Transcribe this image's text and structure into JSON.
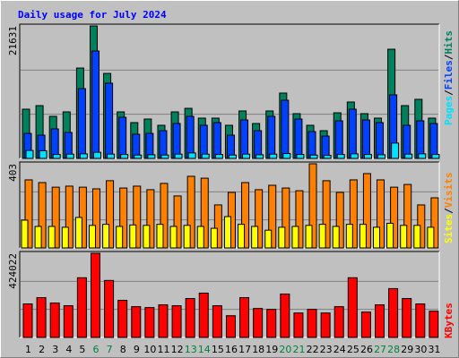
{
  "chart_data": [
    {
      "type": "bar",
      "title": "Daily usage for July 2024",
      "categories": [
        "1",
        "2",
        "3",
        "4",
        "5",
        "6",
        "7",
        "8",
        "9",
        "10",
        "11",
        "12",
        "13",
        "14",
        "15",
        "16",
        "17",
        "18",
        "19",
        "20",
        "21",
        "22",
        "23",
        "24",
        "25",
        "26",
        "27",
        "28",
        "29",
        "30",
        "31"
      ],
      "category_colors": [
        "#000000",
        "#000000",
        "#000000",
        "#000000",
        "#000000",
        "#008040",
        "#008040",
        "#000000",
        "#000000",
        "#000000",
        "#000000",
        "#000000",
        "#008040",
        "#008040",
        "#000000",
        "#000000",
        "#000000",
        "#000000",
        "#000000",
        "#008040",
        "#008040",
        "#000000",
        "#000000",
        "#000000",
        "#000000",
        "#000000",
        "#008040",
        "#008040",
        "#000000",
        "#000000",
        "#000000"
      ],
      "ylim": [
        0,
        21631
      ],
      "yticks": [
        21631
      ],
      "grid": true,
      "series": [
        {
          "name": "Hits",
          "color": "#00805c",
          "values": [
            8040,
            8620,
            6870,
            7600,
            14760,
            21631,
            13880,
            7600,
            5850,
            6430,
            5410,
            7600,
            8180,
            6580,
            6580,
            5410,
            7750,
            5700,
            7750,
            10670,
            7310,
            5410,
            4530,
            7450,
            9210,
            7310,
            6580,
            17830,
            8620,
            9650,
            6580
          ]
        },
        {
          "name": "Files",
          "color": "#0040ff",
          "values": [
            4090,
            3800,
            4820,
            4240,
            11400,
            17540,
            12280,
            6720,
            3950,
            4090,
            4530,
            5700,
            6870,
            5410,
            5850,
            3800,
            6280,
            4530,
            6870,
            9500,
            6430,
            4380,
            3650,
            6140,
            8040,
            6280,
            5850,
            10380,
            5410,
            6140,
            5700
          ]
        },
        {
          "name": "Pages",
          "color": "#00e0ff",
          "values": [
            1300,
            1250,
            650,
            700,
            750,
            1000,
            700,
            650,
            550,
            600,
            550,
            700,
            900,
            700,
            650,
            550,
            700,
            600,
            700,
            800,
            650,
            550,
            500,
            650,
            750,
            650,
            600,
            2500,
            700,
            750,
            650
          ]
        }
      ]
    },
    {
      "type": "bar",
      "ylim": [
        0,
        403
      ],
      "yticks": [
        403
      ],
      "grid": true,
      "series": [
        {
          "name": "Visits",
          "color": "#ff8000",
          "values": [
            326,
            313,
            291,
            296,
            291,
            283,
            322,
            287,
            296,
            279,
            309,
            249,
            343,
            334,
            206,
            266,
            313,
            279,
            300,
            287,
            274,
            403,
            322,
            266,
            326,
            356,
            326,
            291,
            304,
            206,
            240
          ]
        },
        {
          "name": "Sites",
          "color": "#ffff00",
          "values": [
            133,
            103,
            103,
            99,
            146,
            108,
            113,
            103,
            110,
            108,
            113,
            103,
            108,
            103,
            94,
            150,
            113,
            103,
            85,
            99,
            103,
            108,
            113,
            103,
            113,
            113,
            99,
            118,
            108,
            108,
            99
          ]
        }
      ]
    },
    {
      "type": "bar",
      "ylim": [
        0,
        424022
      ],
      "yticks": [
        424022
      ],
      "grid": true,
      "series": [
        {
          "name": "KBytes",
          "color": "#ff0000",
          "values": [
            168700,
            200600,
            173250,
            159600,
            300900,
            424022,
            287200,
            186900,
            155000,
            150450,
            164100,
            159600,
            196000,
            223400,
            159600,
            109400,
            200600,
            145900,
            141300,
            218800,
            123100,
            141300,
            123100,
            155000,
            300900,
            127700,
            164100,
            246200,
            196000,
            168700,
            132200
          ]
        }
      ]
    }
  ]
}
